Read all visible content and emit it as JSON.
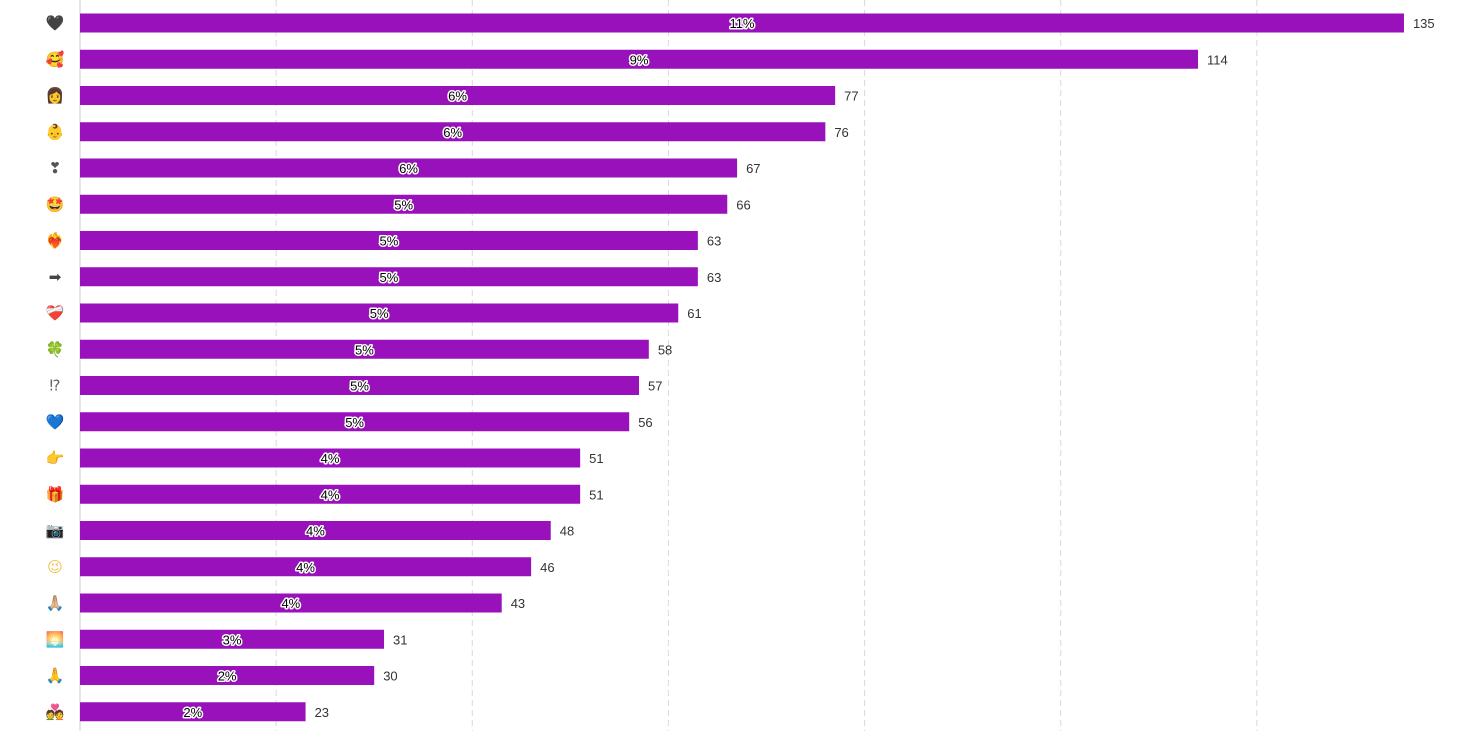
{
  "chart_data": {
    "type": "bar",
    "orientation": "horizontal",
    "categories": [
      "🖤",
      "🥰",
      "👩",
      "👶",
      "❣",
      "🤩",
      "❤️‍🔥",
      "➡",
      "❤️‍🩹",
      "🍀",
      "⁉",
      "💙",
      "👉",
      "🎁",
      "📷",
      "😉",
      "🙏🏼",
      "🌅",
      "🙏",
      "💑"
    ],
    "values": [
      135,
      114,
      77,
      76,
      67,
      66,
      63,
      63,
      61,
      58,
      57,
      56,
      51,
      51,
      48,
      46,
      43,
      31,
      30,
      23
    ],
    "percent_labels": [
      "11%",
      "9%",
      "6%",
      "6%",
      "6%",
      "5%",
      "5%",
      "5%",
      "5%",
      "5%",
      "5%",
      "5%",
      "4%",
      "4%",
      "4%",
      "4%",
      "4%",
      "3%",
      "2%",
      "2%"
    ],
    "xlim": [
      0,
      140
    ],
    "x_gridlines": [
      20,
      40,
      60,
      80,
      100,
      120
    ],
    "grid": true,
    "legend": "none",
    "title": "",
    "xlabel": "",
    "ylabel": ""
  },
  "colors": {
    "bar": "#9911bb",
    "grid": "#d9d9d9",
    "value_text": "#333333"
  },
  "icon_colors": [
    "#444444",
    "#f2b134",
    "#e8a33d",
    "#f2c14e",
    "#555555",
    "#f2b134",
    "#e74c3c",
    "#444444",
    "#e74c3c",
    "#3aa54a",
    "#666666",
    "#4a90d9",
    "#f2b134",
    "#e8a33d",
    "#555555",
    "#f2c14e",
    "#e8a33d",
    "#e0a040",
    "#f2b134",
    "#e8a33d"
  ]
}
